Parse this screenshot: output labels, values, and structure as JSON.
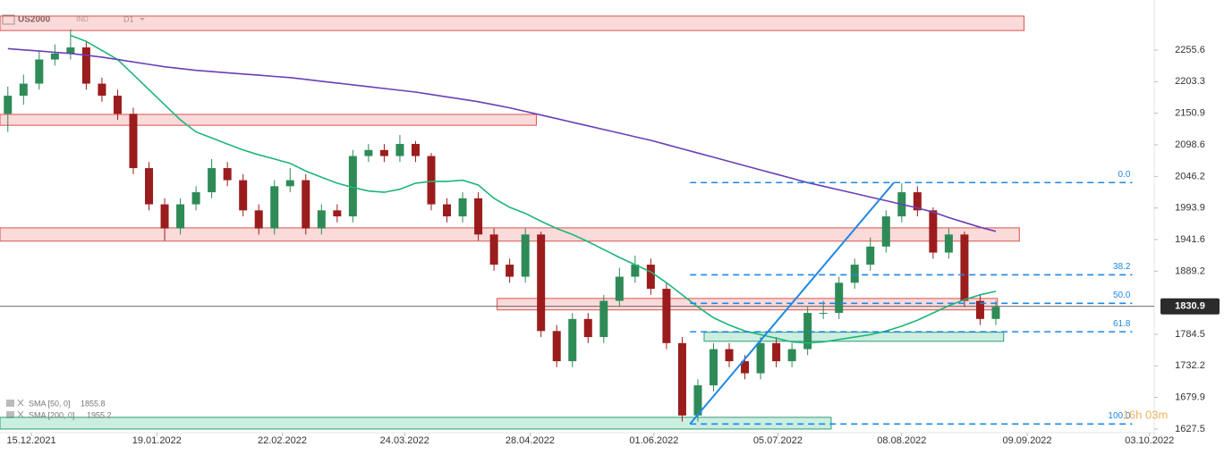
{
  "chart_data": {
    "type": "candlestick",
    "symbol": "US2000",
    "market": "IND",
    "timeframe": "D1",
    "countdown": "16h 03m",
    "x": [
      0,
      1,
      2,
      3,
      4,
      5,
      6,
      7,
      8,
      9,
      10,
      11,
      12,
      13,
      14,
      15,
      16,
      17,
      18,
      19,
      20,
      21,
      22,
      23,
      24,
      25,
      26,
      27,
      28,
      29,
      30,
      31,
      32,
      33,
      34,
      35,
      36,
      37,
      38,
      39,
      40,
      41,
      42,
      43,
      44,
      45,
      46,
      47,
      48,
      49,
      50,
      51,
      52,
      53,
      54,
      55,
      56,
      57,
      58,
      59,
      60,
      61,
      62,
      63
    ],
    "open": [
      2150,
      2180,
      2200,
      2240,
      2250,
      2260,
      2200,
      2180,
      2150,
      2060,
      2000,
      1960,
      2000,
      2020,
      2060,
      2040,
      1990,
      1960,
      2030,
      2040,
      1960,
      1990,
      1980,
      2080,
      2090,
      2080,
      2100,
      2080,
      2000,
      1980,
      2010,
      1950,
      1900,
      1880,
      1950,
      1790,
      1740,
      1810,
      1780,
      1840,
      1880,
      1900,
      1860,
      1770,
      1650,
      1700,
      1760,
      1740,
      1720,
      1770,
      1740,
      1760,
      1820,
      1820,
      1870,
      1900,
      1930,
      1980,
      2020,
      1990,
      1920,
      1950,
      1840,
      1810
    ],
    "high": [
      2195,
      2215,
      2255,
      2265,
      2290,
      2270,
      2210,
      2190,
      2160,
      2070,
      2010,
      2010,
      2030,
      2075,
      2070,
      2050,
      2000,
      2040,
      2060,
      2050,
      2000,
      2000,
      2090,
      2100,
      2100,
      2115,
      2105,
      2085,
      2010,
      2020,
      2020,
      1960,
      1910,
      1960,
      1955,
      1800,
      1820,
      1820,
      1850,
      1895,
      1915,
      1910,
      1870,
      1780,
      1710,
      1770,
      1770,
      1750,
      1780,
      1780,
      1770,
      1830,
      1840,
      1880,
      1910,
      1945,
      1990,
      2035,
      2030,
      1995,
      1960,
      1955,
      1850,
      1840
    ],
    "low": [
      2120,
      2165,
      2190,
      2230,
      2240,
      2190,
      2170,
      2140,
      2050,
      1990,
      1940,
      1950,
      1990,
      2010,
      2030,
      1980,
      1950,
      1950,
      2020,
      1950,
      1950,
      1970,
      1970,
      2070,
      2070,
      2070,
      2070,
      1990,
      1970,
      1970,
      1940,
      1890,
      1870,
      1870,
      1780,
      1730,
      1730,
      1770,
      1770,
      1830,
      1870,
      1850,
      1760,
      1640,
      1640,
      1690,
      1730,
      1710,
      1710,
      1730,
      1730,
      1750,
      1810,
      1810,
      1860,
      1890,
      1920,
      1970,
      1980,
      1910,
      1910,
      1830,
      1800,
      1800
    ],
    "close": [
      2180,
      2200,
      2240,
      2250,
      2260,
      2200,
      2180,
      2150,
      2060,
      2000,
      1960,
      2000,
      2020,
      2060,
      2040,
      1990,
      1960,
      2030,
      2040,
      1960,
      1990,
      1980,
      2080,
      2090,
      2080,
      2100,
      2080,
      2000,
      1980,
      2010,
      1950,
      1900,
      1880,
      1950,
      1790,
      1740,
      1810,
      1780,
      1840,
      1880,
      1900,
      1860,
      1770,
      1650,
      1700,
      1760,
      1740,
      1720,
      1770,
      1740,
      1760,
      1820,
      1820,
      1870,
      1900,
      1930,
      1980,
      2020,
      1990,
      1920,
      1950,
      1840,
      1810,
      1830
    ],
    "up_color": "#2e8b57",
    "down_color": "#9b1c1c",
    "series": [
      {
        "name": "SMA [50, 0]",
        "color": "#1db57a",
        "values": [
          null,
          null,
          null,
          null,
          2280,
          2270,
          2255,
          2240,
          2215,
          2190,
          2165,
          2140,
          2120,
          2110,
          2100,
          2090,
          2082,
          2075,
          2068,
          2055,
          2045,
          2035,
          2028,
          2022,
          2020,
          2025,
          2035,
          2038,
          2038,
          2040,
          2032,
          2010,
          1995,
          1985,
          1972,
          1960,
          1950,
          1938,
          1925,
          1912,
          1900,
          1888,
          1870,
          1850,
          1830,
          1812,
          1800,
          1790,
          1784,
          1778,
          1772,
          1770,
          1772,
          1776,
          1780,
          1784,
          1790,
          1798,
          1808,
          1820,
          1832,
          1842,
          1850,
          1855.8
        ]
      },
      {
        "name": "SMA [200, 0]",
        "color": "#6a3fb5",
        "values": [
          2258,
          2256,
          2254,
          2252,
          2250,
          2247,
          2244,
          2240,
          2236,
          2232,
          2228,
          2225,
          2222,
          2220,
          2218,
          2216,
          2214,
          2212,
          2210,
          2207,
          2204,
          2201,
          2198,
          2195,
          2192,
          2189,
          2186,
          2182,
          2178,
          2174,
          2170,
          2165,
          2160,
          2154,
          2148,
          2142,
          2136,
          2130,
          2124,
          2118,
          2112,
          2106,
          2099,
          2092,
          2085,
          2078,
          2071,
          2064,
          2057,
          2050,
          2043,
          2036,
          2030,
          2024,
          2018,
          2012,
          2006,
          2000,
          1994,
          1987,
          1978,
          1970,
          1962,
          1955.2
        ]
      }
    ],
    "zones": [
      {
        "x": [
          -0.5,
          64.8
        ],
        "price": [
          2288,
          2312
        ],
        "color": "red"
      },
      {
        "x": [
          -0.5,
          33.7
        ],
        "price": [
          2131,
          2149
        ],
        "color": "red"
      },
      {
        "x": [
          -0.5,
          64.5
        ],
        "price": [
          1939,
          1961
        ],
        "color": "red"
      },
      {
        "x": [
          31.2,
          63.1
        ],
        "price": [
          1825,
          1844
        ],
        "color": "red"
      },
      {
        "x": [
          44.4,
          63.5
        ],
        "price": [
          1773,
          1788
        ],
        "color": "green"
      },
      {
        "x": [
          -0.5,
          52.5
        ],
        "price": [
          1627.6,
          1647
        ],
        "color": "green"
      }
    ],
    "fib": {
      "color": "#1e88e5",
      "start": {
        "x": 43.5,
        "price": 1636
      },
      "end": {
        "x": 56.5,
        "price": 2036
      },
      "line_x": [
        43.5,
        71.7
      ],
      "levels": [
        {
          "label": "0.0",
          "price": 2036
        },
        {
          "label": "38.2",
          "price": 1883.2
        },
        {
          "label": "50.0",
          "price": 1836
        },
        {
          "label": "61.8",
          "price": 1788.8
        },
        {
          "label": "100.0",
          "price": 1636
        }
      ]
    },
    "last_price": 1830.9,
    "xlim": [
      -0.5,
      73.1
    ],
    "ylim": [
      1612.7,
      2338.6
    ],
    "yticks": [
      2255.6,
      2203.3,
      2150.9,
      2098.6,
      2046.2,
      1993.9,
      1941.6,
      1889.2,
      1784.5,
      1732.2,
      1679.9,
      1627.5
    ],
    "xticks": [
      {
        "value": 1.5,
        "label": "15.12.2021"
      },
      {
        "value": 9.5,
        "label": "19.01.2022"
      },
      {
        "value": 17.5,
        "label": "22.02.2022"
      },
      {
        "value": 25.3,
        "label": "24.03.2022"
      },
      {
        "value": 33.3,
        "label": "28.04.2022"
      },
      {
        "value": 41.2,
        "label": "01.06.2022"
      },
      {
        "value": 49.1,
        "label": "05.07.2022"
      },
      {
        "value": 57,
        "label": "08.08.2022"
      },
      {
        "value": 65,
        "label": "09.09.2022"
      },
      {
        "value": 72.8,
        "label": "03.10.2022"
      }
    ]
  }
}
